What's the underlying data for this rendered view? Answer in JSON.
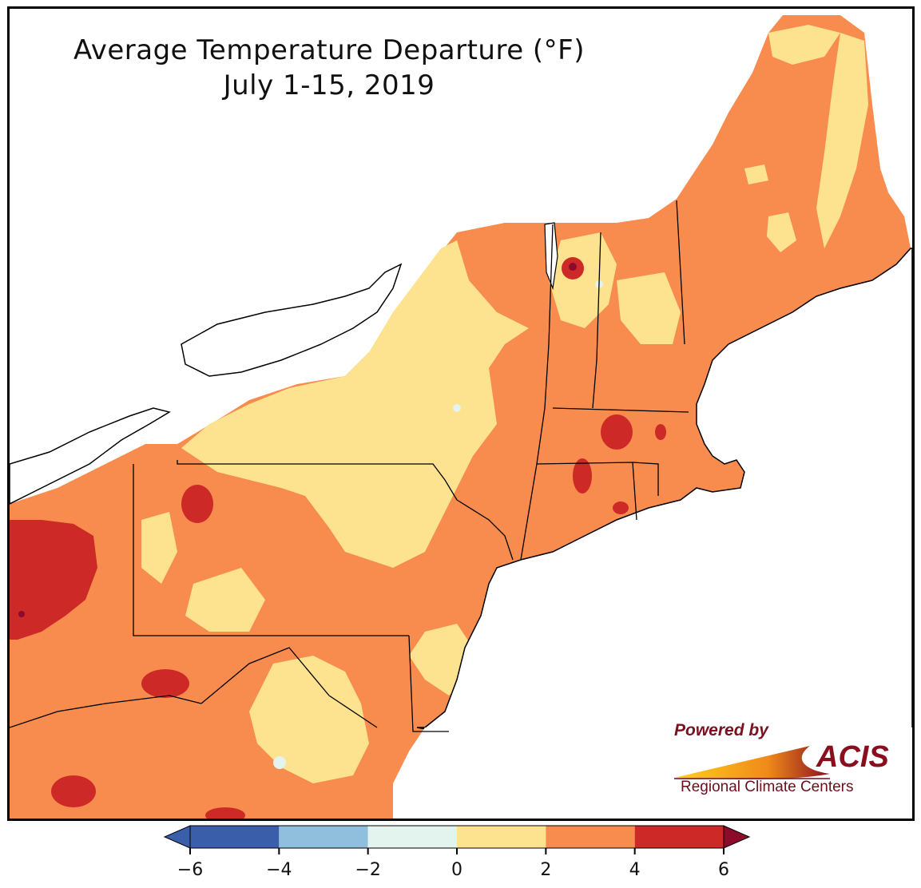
{
  "title": {
    "line1": "Average Temperature Departure (°F)",
    "line2": "July 1-15, 2019"
  },
  "logo": {
    "powered": "Powered by",
    "name": "ACIS",
    "subtitle": "Regional Climate Centers"
  },
  "colors": {
    "lt_neg4": "#3a5ea9",
    "neg4_neg2": "#8fbfdc",
    "neg2_0": "#e3f3ee",
    "0_2": "#fde38f",
    "2_4": "#f78c4e",
    "4_6": "#cd2a27",
    "gt_6": "#8c0b2d",
    "water": "#ffffff",
    "border": "#000000",
    "county": "#b0a090"
  },
  "legend": {
    "ticks": [
      "−6",
      "−4",
      "−2",
      "0",
      "2",
      "4",
      "6"
    ],
    "bins": [
      {
        "from": -6,
        "to": -4,
        "color": "#3a5ea9"
      },
      {
        "from": -4,
        "to": -2,
        "color": "#8fbfdc"
      },
      {
        "from": -2,
        "to": 0,
        "color": "#e3f3ee"
      },
      {
        "from": 0,
        "to": 2,
        "color": "#fde38f"
      },
      {
        "from": 2,
        "to": 4,
        "color": "#f78c4e"
      },
      {
        "from": 4,
        "to": 6,
        "color": "#cd2a27"
      }
    ],
    "extend_low_color": "#3a5ea9",
    "extend_high_color": "#8c0b2d"
  }
}
